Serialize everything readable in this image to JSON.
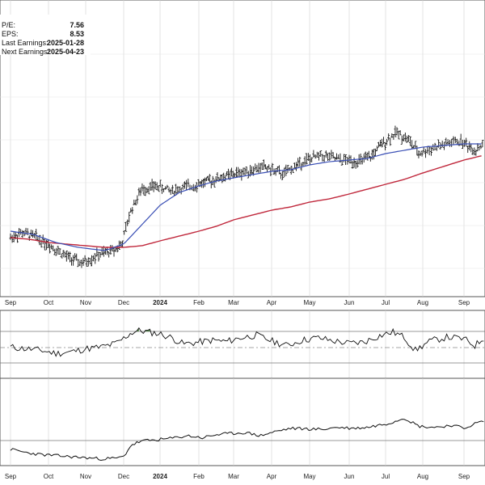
{
  "info": {
    "pe_label": "P/E:",
    "pe_value": "7.56",
    "eps_label": "EPS:",
    "eps_value": "8.53",
    "last_label": "Last Earnings:",
    "last_value": "2025-01-28",
    "next_label": "Next Earnings:",
    "next_value": "2025-04-23"
  },
  "colors": {
    "price": "#111111",
    "ma_short": "#3a4fb5",
    "ma_long": "#c0283c",
    "rsi_fill": "#3f7a35",
    "grid": "#d0d0d0",
    "frame": "#555555"
  },
  "chart_data": [
    {
      "type": "ohlc",
      "panel": "price",
      "grid": true,
      "x_months": [
        "Sep",
        "Oct",
        "Nov",
        "Dec",
        "2024",
        "Feb",
        "Mar",
        "Apr",
        "May",
        "Jun",
        "Jul",
        "Aug",
        "Sep"
      ],
      "price_shape": [
        [
          0,
          0.28
        ],
        [
          0.3,
          0.31
        ],
        [
          0.6,
          0.29
        ],
        [
          1.0,
          0.24
        ],
        [
          1.5,
          0.16
        ],
        [
          1.9,
          0.12
        ],
        [
          2.3,
          0.17
        ],
        [
          2.7,
          0.2
        ],
        [
          2.95,
          0.24
        ],
        [
          3.2,
          0.45
        ],
        [
          3.5,
          0.58
        ],
        [
          3.9,
          0.6
        ],
        [
          4.3,
          0.57
        ],
        [
          4.8,
          0.6
        ],
        [
          5.3,
          0.63
        ],
        [
          5.8,
          0.66
        ],
        [
          6.3,
          0.69
        ],
        [
          6.8,
          0.72
        ],
        [
          7.3,
          0.67
        ],
        [
          7.8,
          0.75
        ],
        [
          8.3,
          0.79
        ],
        [
          8.8,
          0.76
        ],
        [
          9.3,
          0.75
        ],
        [
          9.6,
          0.78
        ],
        [
          9.9,
          0.86
        ],
        [
          10.3,
          0.93
        ],
        [
          10.6,
          0.89
        ],
        [
          10.9,
          0.8
        ],
        [
          11.3,
          0.84
        ],
        [
          11.9,
          0.88
        ],
        [
          12.3,
          0.82
        ],
        [
          12.55,
          0.86
        ]
      ],
      "ma_short_shape": [
        [
          0,
          0.32
        ],
        [
          0.6,
          0.3
        ],
        [
          1.2,
          0.25
        ],
        [
          1.8,
          0.22
        ],
        [
          2.5,
          0.2
        ],
        [
          3.0,
          0.24
        ],
        [
          3.5,
          0.36
        ],
        [
          4.0,
          0.48
        ],
        [
          4.5,
          0.56
        ],
        [
          5.0,
          0.6
        ],
        [
          5.5,
          0.63
        ],
        [
          6.0,
          0.65
        ],
        [
          6.5,
          0.67
        ],
        [
          7.0,
          0.69
        ],
        [
          7.5,
          0.7
        ],
        [
          8.0,
          0.73
        ],
        [
          8.5,
          0.75
        ],
        [
          9.0,
          0.76
        ],
        [
          9.5,
          0.77
        ],
        [
          10.0,
          0.8
        ],
        [
          10.5,
          0.82
        ],
        [
          11.0,
          0.84
        ],
        [
          11.5,
          0.85
        ],
        [
          12.0,
          0.86
        ],
        [
          12.55,
          0.86
        ]
      ],
      "ma_long_shape": [
        [
          0,
          0.28
        ],
        [
          0.5,
          0.27
        ],
        [
          1.0,
          0.25
        ],
        [
          1.5,
          0.24
        ],
        [
          2.0,
          0.23
        ],
        [
          2.5,
          0.22
        ],
        [
          3.0,
          0.22
        ],
        [
          3.5,
          0.23
        ],
        [
          4.0,
          0.26
        ],
        [
          4.5,
          0.29
        ],
        [
          5.0,
          0.32
        ],
        [
          5.5,
          0.35
        ],
        [
          6.0,
          0.39
        ],
        [
          6.5,
          0.42
        ],
        [
          7.0,
          0.45
        ],
        [
          7.5,
          0.47
        ],
        [
          8.0,
          0.5
        ],
        [
          8.5,
          0.52
        ],
        [
          9.0,
          0.55
        ],
        [
          9.5,
          0.58
        ],
        [
          10.0,
          0.61
        ],
        [
          10.5,
          0.64
        ],
        [
          11.0,
          0.68
        ],
        [
          11.5,
          0.72
        ],
        [
          12.0,
          0.76
        ],
        [
          12.55,
          0.79
        ]
      ]
    },
    {
      "type": "line",
      "panel": "oscillator",
      "grid": true,
      "shape": [
        [
          0,
          0.5
        ],
        [
          0.4,
          0.45
        ],
        [
          0.8,
          0.4
        ],
        [
          1.2,
          0.3
        ],
        [
          1.6,
          0.35
        ],
        [
          2.0,
          0.45
        ],
        [
          2.4,
          0.5
        ],
        [
          2.8,
          0.62
        ],
        [
          3.0,
          0.78
        ],
        [
          3.2,
          0.95
        ],
        [
          3.4,
          1.03
        ],
        [
          3.7,
          0.98
        ],
        [
          4.0,
          0.92
        ],
        [
          4.3,
          0.8
        ],
        [
          4.6,
          0.6
        ],
        [
          5.0,
          0.66
        ],
        [
          5.4,
          0.72
        ],
        [
          5.8,
          0.68
        ],
        [
          6.2,
          0.8
        ],
        [
          6.6,
          0.88
        ],
        [
          7.0,
          0.7
        ],
        [
          7.4,
          0.55
        ],
        [
          7.8,
          0.72
        ],
        [
          8.2,
          0.8
        ],
        [
          8.6,
          0.7
        ],
        [
          9.0,
          0.62
        ],
        [
          9.4,
          0.66
        ],
        [
          9.8,
          0.85
        ],
        [
          10.2,
          0.98
        ],
        [
          10.5,
          0.82
        ],
        [
          10.8,
          0.4
        ],
        [
          11.2,
          0.7
        ],
        [
          11.6,
          0.82
        ],
        [
          12.0,
          0.76
        ],
        [
          12.3,
          0.55
        ],
        [
          12.55,
          0.8
        ]
      ]
    },
    {
      "type": "line",
      "panel": "lower",
      "grid": true,
      "shape": [
        [
          0,
          0.34
        ],
        [
          0.4,
          0.28
        ],
        [
          0.8,
          0.24
        ],
        [
          1.2,
          0.22
        ],
        [
          1.6,
          0.2
        ],
        [
          2.0,
          0.18
        ],
        [
          2.4,
          0.16
        ],
        [
          2.8,
          0.17
        ],
        [
          3.0,
          0.2
        ],
        [
          3.2,
          0.42
        ],
        [
          3.5,
          0.5
        ],
        [
          3.9,
          0.52
        ],
        [
          4.3,
          0.55
        ],
        [
          4.7,
          0.6
        ],
        [
          5.1,
          0.56
        ],
        [
          5.5,
          0.62
        ],
        [
          5.9,
          0.64
        ],
        [
          6.3,
          0.66
        ],
        [
          6.7,
          0.6
        ],
        [
          7.1,
          0.68
        ],
        [
          7.5,
          0.74
        ],
        [
          7.9,
          0.73
        ],
        [
          8.3,
          0.72
        ],
        [
          8.7,
          0.76
        ],
        [
          9.1,
          0.74
        ],
        [
          9.5,
          0.76
        ],
        [
          9.8,
          0.8
        ],
        [
          10.1,
          0.84
        ],
        [
          10.5,
          0.94
        ],
        [
          10.9,
          0.78
        ],
        [
          11.3,
          0.76
        ],
        [
          11.7,
          0.8
        ],
        [
          12.0,
          0.74
        ],
        [
          12.3,
          0.83
        ],
        [
          12.55,
          0.88
        ]
      ]
    }
  ]
}
